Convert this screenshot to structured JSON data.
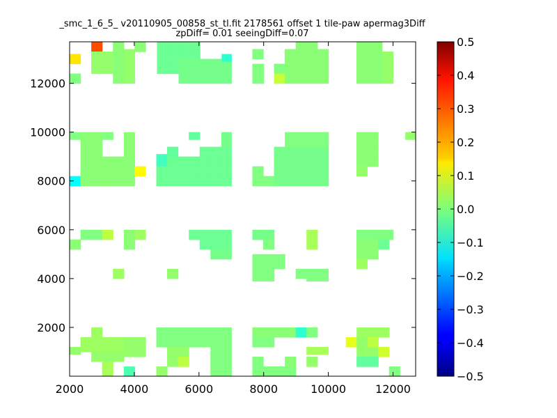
{
  "chart_data": {
    "type": "heatmap",
    "title": "_smc_1_6_5_ v20110905_00858_st_tl.fit 2178561 offset 1 tile-paw apermag3Diff",
    "subtitle": "zpDiff= 0.01 seeingDiff=0.07",
    "xlabel": "",
    "ylabel": "",
    "xlim": [
      2000,
      12700
    ],
    "ylim": [
      0,
      13700
    ],
    "cell_size": [
      335,
      400
    ],
    "x_ticks": [
      {
        "value": 2000,
        "label": "2000"
      },
      {
        "value": 4000,
        "label": "4000"
      },
      {
        "value": 6000,
        "label": "6000"
      },
      {
        "value": 8000,
        "label": "8000"
      },
      {
        "value": 10000,
        "label": "10000"
      },
      {
        "value": 12000,
        "label": "12000"
      }
    ],
    "y_ticks": [
      {
        "value": 2000,
        "label": "2000"
      },
      {
        "value": 4000,
        "label": "4000"
      },
      {
        "value": 6000,
        "label": "6000"
      },
      {
        "value": 8000,
        "label": "8000"
      },
      {
        "value": 10000,
        "label": "10000"
      },
      {
        "value": 12000,
        "label": "12000"
      }
    ],
    "colorbar": {
      "colormap": "jet",
      "range": [
        -0.5,
        0.5
      ],
      "ticks": [
        {
          "value": 0.5,
          "label": "0.5"
        },
        {
          "value": 0.4,
          "label": "0.4"
        },
        {
          "value": 0.3,
          "label": "0.3"
        },
        {
          "value": 0.2,
          "label": "0.2"
        },
        {
          "value": 0.1,
          "label": "0.1"
        },
        {
          "value": 0.0,
          "label": "0.0"
        },
        {
          "value": -0.1,
          "label": "−0.1"
        },
        {
          "value": -0.2,
          "label": "−0.2"
        },
        {
          "value": -0.3,
          "label": "−0.3"
        },
        {
          "value": -0.4,
          "label": "−0.4"
        },
        {
          "value": -0.5,
          "label": "−0.5"
        }
      ]
    },
    "grid": false,
    "blocks": [
      {
        "x0": 2000,
        "x1": 2335,
        "y0": 12000,
        "y1": 12400,
        "value": 0.0
      },
      {
        "x0": 2000,
        "x1": 2335,
        "y0": 12800,
        "y1": 13200,
        "value": 0.15
      },
      {
        "x0": 2670,
        "x1": 3005,
        "y0": 13300,
        "y1": 13700,
        "value": 0.3
      },
      {
        "x0": 2670,
        "x1": 3340,
        "y0": 12400,
        "y1": 13300,
        "value": 0.02
      },
      {
        "x0": 3340,
        "x1": 3675,
        "y0": 12000,
        "y1": 13700,
        "value": 0.01
      },
      {
        "x0": 3675,
        "x1": 4010,
        "y0": 12000,
        "y1": 13400,
        "value": 0.02
      },
      {
        "x0": 4010,
        "x1": 4345,
        "y0": 13300,
        "y1": 13700,
        "value": 0.01
      },
      {
        "x0": 4700,
        "x1": 6030,
        "y0": 12400,
        "y1": 13700,
        "value": -0.02
      },
      {
        "x0": 5370,
        "x1": 7000,
        "y0": 12000,
        "y1": 13000,
        "value": -0.01
      },
      {
        "x0": 6700,
        "x1": 7000,
        "y0": 12900,
        "y1": 13200,
        "value": -0.08
      },
      {
        "x0": 7650,
        "x1": 8000,
        "y0": 12000,
        "y1": 12800,
        "value": 0.0
      },
      {
        "x0": 7650,
        "x1": 7985,
        "y0": 13000,
        "y1": 13400,
        "value": 0.0
      },
      {
        "x0": 8320,
        "x1": 8655,
        "y0": 12000,
        "y1": 12800,
        "value": 0.0
      },
      {
        "x0": 8320,
        "x1": 8655,
        "y0": 12000,
        "y1": 12400,
        "value": 0.07
      },
      {
        "x0": 8650,
        "x1": 10000,
        "y0": 12000,
        "y1": 13400,
        "value": 0.01
      },
      {
        "x0": 8990,
        "x1": 9660,
        "y0": 13300,
        "y1": 13700,
        "value": 0.01
      },
      {
        "x0": 10870,
        "x1": 11660,
        "y0": 12000,
        "y1": 13700,
        "value": 0.01
      },
      {
        "x0": 11660,
        "x1": 12000,
        "y0": 12000,
        "y1": 13300,
        "value": 0.02
      },
      {
        "x0": 2000,
        "x1": 2335,
        "y0": 9700,
        "y1": 10000,
        "value": 0.0
      },
      {
        "x0": 2000,
        "x1": 2335,
        "y0": 7800,
        "y1": 8200,
        "value": -0.12
      },
      {
        "x0": 2335,
        "x1": 3005,
        "y0": 7800,
        "y1": 10000,
        "value": 0.01
      },
      {
        "x0": 3005,
        "x1": 4010,
        "y0": 7800,
        "y1": 9000,
        "value": 0.01
      },
      {
        "x0": 3005,
        "x1": 3340,
        "y0": 9700,
        "y1": 10000,
        "value": 0.0
      },
      {
        "x0": 3675,
        "x1": 4010,
        "y0": 9000,
        "y1": 10000,
        "value": 0.01
      },
      {
        "x0": 4010,
        "x1": 4345,
        "y0": 8200,
        "y1": 8600,
        "value": 0.13
      },
      {
        "x0": 4680,
        "x1": 5015,
        "y0": 8600,
        "y1": 9100,
        "value": -0.06
      },
      {
        "x0": 4680,
        "x1": 7000,
        "y0": 7800,
        "y1": 8600,
        "value": -0.02
      },
      {
        "x0": 5015,
        "x1": 7000,
        "y0": 8600,
        "y1": 9000,
        "value": -0.02
      },
      {
        "x0": 5015,
        "x1": 5350,
        "y0": 9000,
        "y1": 9400,
        "value": -0.03
      },
      {
        "x0": 5685,
        "x1": 6020,
        "y0": 9700,
        "y1": 10000,
        "value": -0.03
      },
      {
        "x0": 6020,
        "x1": 7000,
        "y0": 9000,
        "y1": 9400,
        "value": -0.02
      },
      {
        "x0": 6690,
        "x1": 7000,
        "y0": 9400,
        "y1": 10000,
        "value": -0.01
      },
      {
        "x0": 7650,
        "x1": 7985,
        "y0": 7800,
        "y1": 8600,
        "value": 0.0
      },
      {
        "x0": 7985,
        "x1": 8320,
        "y0": 7800,
        "y1": 8200,
        "value": 0.0
      },
      {
        "x0": 8320,
        "x1": 10000,
        "y0": 7800,
        "y1": 9400,
        "value": -0.01
      },
      {
        "x0": 8655,
        "x1": 10000,
        "y0": 9400,
        "y1": 10000,
        "value": 0.0
      },
      {
        "x0": 10870,
        "x1": 11540,
        "y0": 8600,
        "y1": 10000,
        "value": 0.01
      },
      {
        "x0": 10870,
        "x1": 11200,
        "y0": 8200,
        "y1": 8600,
        "value": 0.02
      },
      {
        "x0": 12380,
        "x1": 12700,
        "y0": 9700,
        "y1": 10000,
        "value": 0.02
      },
      {
        "x0": 2000,
        "x1": 2335,
        "y0": 5200,
        "y1": 5600,
        "value": 0.01
      },
      {
        "x0": 2335,
        "x1": 3005,
        "y0": 5600,
        "y1": 6000,
        "value": 0.0
      },
      {
        "x0": 3005,
        "x1": 3340,
        "y0": 5600,
        "y1": 6000,
        "value": 0.06
      },
      {
        "x0": 3340,
        "x1": 3675,
        "y0": 4000,
        "y1": 4400,
        "value": 0.03
      },
      {
        "x0": 3675,
        "x1": 4010,
        "y0": 5200,
        "y1": 6000,
        "value": 0.01
      },
      {
        "x0": 4010,
        "x1": 4345,
        "y0": 5600,
        "y1": 6000,
        "value": 0.03
      },
      {
        "x0": 5015,
        "x1": 5350,
        "y0": 4000,
        "y1": 4400,
        "value": 0.02
      },
      {
        "x0": 5685,
        "x1": 7000,
        "y0": 5600,
        "y1": 6000,
        "value": -0.02
      },
      {
        "x0": 6020,
        "x1": 7000,
        "y0": 5200,
        "y1": 5600,
        "value": -0.02
      },
      {
        "x0": 6355,
        "x1": 7000,
        "y0": 4800,
        "y1": 5200,
        "value": -0.01
      },
      {
        "x0": 7650,
        "x1": 8320,
        "y0": 5600,
        "y1": 6000,
        "value": -0.01
      },
      {
        "x0": 7985,
        "x1": 8320,
        "y0": 5200,
        "y1": 5600,
        "value": 0.0
      },
      {
        "x0": 7650,
        "x1": 8655,
        "y0": 4400,
        "y1": 5000,
        "value": 0.0
      },
      {
        "x0": 7650,
        "x1": 8320,
        "y0": 3900,
        "y1": 4400,
        "value": 0.0
      },
      {
        "x0": 9325,
        "x1": 9660,
        "y0": 5200,
        "y1": 6000,
        "value": 0.04
      },
      {
        "x0": 8990,
        "x1": 9325,
        "y0": 4000,
        "y1": 4400,
        "value": 0.0
      },
      {
        "x0": 9325,
        "x1": 9995,
        "y0": 3900,
        "y1": 4400,
        "value": 0.0
      },
      {
        "x0": 10870,
        "x1": 12000,
        "y0": 5600,
        "y1": 6000,
        "value": 0.0
      },
      {
        "x0": 10870,
        "x1": 11540,
        "y0": 4800,
        "y1": 5600,
        "value": 0.01
      },
      {
        "x0": 11540,
        "x1": 11875,
        "y0": 5200,
        "y1": 5600,
        "value": -0.02
      },
      {
        "x0": 10870,
        "x1": 11200,
        "y0": 4400,
        "y1": 4800,
        "value": 0.03
      },
      {
        "x0": 2000,
        "x1": 2335,
        "y0": 900,
        "y1": 1200,
        "value": 0.02
      },
      {
        "x0": 2335,
        "x1": 3675,
        "y0": 1000,
        "y1": 1600,
        "value": 0.03
      },
      {
        "x0": 2670,
        "x1": 3005,
        "y0": 1600,
        "y1": 2000,
        "value": 0.03
      },
      {
        "x0": 2670,
        "x1": 3675,
        "y0": 600,
        "y1": 1000,
        "value": 0.02
      },
      {
        "x0": 3005,
        "x1": 3340,
        "y0": 0,
        "y1": 600,
        "value": 0.04
      },
      {
        "x0": 3675,
        "x1": 4345,
        "y0": 800,
        "y1": 1600,
        "value": 0.02
      },
      {
        "x0": 3675,
        "x1": 4010,
        "y0": 0,
        "y1": 400,
        "value": -0.05
      },
      {
        "x0": 4680,
        "x1": 7000,
        "y0": 1200,
        "y1": 2000,
        "value": 0.0
      },
      {
        "x0": 5015,
        "x1": 5685,
        "y0": 400,
        "y1": 1200,
        "value": 0.02
      },
      {
        "x0": 5350,
        "x1": 5685,
        "y0": 400,
        "y1": 800,
        "value": 0.06
      },
      {
        "x0": 6355,
        "x1": 7000,
        "y0": 0,
        "y1": 1200,
        "value": 0.0
      },
      {
        "x0": 4680,
        "x1": 5015,
        "y0": 0,
        "y1": 400,
        "value": 0.02
      },
      {
        "x0": 7650,
        "x1": 9000,
        "y0": 1600,
        "y1": 2000,
        "value": 0.01
      },
      {
        "x0": 7650,
        "x1": 8320,
        "y0": 1200,
        "y1": 1600,
        "value": 0.0
      },
      {
        "x0": 8990,
        "x1": 9325,
        "y0": 1600,
        "y1": 2000,
        "value": -0.08
      },
      {
        "x0": 9325,
        "x1": 9660,
        "y0": 1600,
        "y1": 2000,
        "value": 0.0
      },
      {
        "x0": 9325,
        "x1": 9995,
        "y0": 900,
        "y1": 1200,
        "value": 0.04
      },
      {
        "x0": 9325,
        "x1": 9660,
        "y0": 400,
        "y1": 800,
        "value": 0.02
      },
      {
        "x0": 7650,
        "x1": 7985,
        "y0": 0,
        "y1": 800,
        "value": 0.0
      },
      {
        "x0": 7985,
        "x1": 8990,
        "y0": 0,
        "y1": 400,
        "value": 0.0
      },
      {
        "x0": 8655,
        "x1": 8990,
        "y0": 400,
        "y1": 800,
        "value": 0.01
      },
      {
        "x0": 10540,
        "x1": 10875,
        "y0": 1200,
        "y1": 1600,
        "value": 0.1
      },
      {
        "x0": 10875,
        "x1": 11880,
        "y0": 1600,
        "y1": 2000,
        "value": 0.03
      },
      {
        "x0": 10875,
        "x1": 11540,
        "y0": 400,
        "y1": 1600,
        "value": 0.02
      },
      {
        "x0": 11540,
        "x1": 11875,
        "y0": 800,
        "y1": 1200,
        "value": 0.08
      },
      {
        "x0": 11210,
        "x1": 11540,
        "y0": 1200,
        "y1": 1600,
        "value": 0.06
      },
      {
        "x0": 10875,
        "x1": 11540,
        "y0": 400,
        "y1": 800,
        "value": -0.03
      },
      {
        "x0": 11875,
        "x1": 12210,
        "y0": 0,
        "y1": 400,
        "value": 0.0
      }
    ]
  }
}
